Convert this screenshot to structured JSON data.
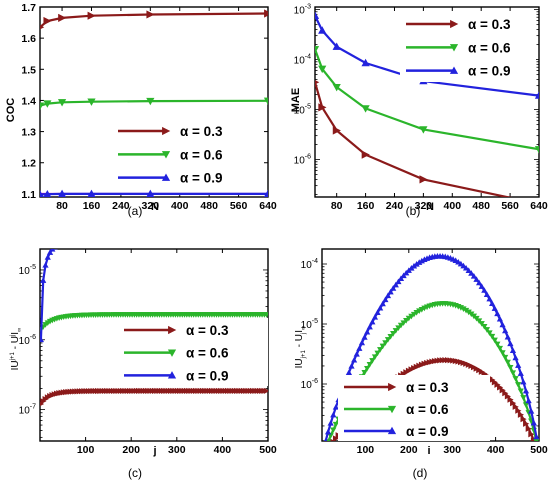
{
  "chart_data": [
    {
      "panel": "(a)",
      "type": "line",
      "xlabel": "N",
      "ylabel": "COC",
      "xlim": [
        20,
        640
      ],
      "ylim": [
        1.09,
        1.7
      ],
      "xticks": [
        "80",
        "160",
        "240",
        "320",
        "400",
        "480",
        "560",
        "640"
      ],
      "yticks": [
        "1.1",
        "1.2",
        "1.3",
        "1.4",
        "1.5",
        "1.6",
        "1.7"
      ],
      "legend_position": "bottom-right",
      "x": [
        20,
        40,
        80,
        160,
        320,
        640
      ],
      "series": [
        {
          "name": "α = 0.3",
          "color": "#8b1a1a",
          "marker": "right-triangle",
          "values": [
            1.635,
            1.655,
            1.665,
            1.672,
            1.676,
            1.679
          ]
        },
        {
          "name": "α = 0.6",
          "color": "#2bb52b",
          "marker": "down-triangle",
          "values": [
            1.383,
            1.39,
            1.394,
            1.396,
            1.398,
            1.399
          ]
        },
        {
          "name": "α = 0.9",
          "color": "#2222dd",
          "marker": "up-triangle",
          "values": [
            1.098,
            1.099,
            1.1,
            1.1,
            1.1,
            1.1
          ]
        }
      ],
      "extra_line": {
        "color": "#b000b0",
        "value": 1.1
      }
    },
    {
      "panel": "(b)",
      "type": "line",
      "xlabel": "N",
      "ylabel": "MAE",
      "yscale": "log",
      "xlim": [
        20,
        640
      ],
      "ylim_exp": [
        -6.75,
        -2.95
      ],
      "xticks": [
        "80",
        "160",
        "240",
        "320",
        "400",
        "480",
        "560",
        "640"
      ],
      "yticks": [
        {
          "base": "10",
          "exp": "-3"
        },
        {
          "base": "10",
          "exp": "-4"
        },
        {
          "base": "10",
          "exp": "-5"
        },
        {
          "base": "10",
          "exp": "-6"
        }
      ],
      "legend_position": "top-right",
      "x": [
        20,
        40,
        80,
        160,
        320,
        640
      ],
      "series": [
        {
          "name": "α = 0.3",
          "color": "#8b1a1a",
          "marker": "right-triangle",
          "values": [
            3.5e-05,
            1.1e-05,
            3.8e-06,
            1.25e-06,
            4e-07,
            1.3e-07
          ]
        },
        {
          "name": "α = 0.6",
          "color": "#2bb52b",
          "marker": "down-triangle",
          "values": [
            0.00016,
            6.5e-05,
            2.8e-05,
            1.05e-05,
            4e-06,
            1.6e-06
          ]
        },
        {
          "name": "α = 0.9",
          "color": "#2222dd",
          "marker": "up-triangle",
          "values": [
            0.00075,
            0.00038,
            0.00018,
            8.5e-05,
            3.7e-05,
            1.9e-05
          ]
        }
      ]
    },
    {
      "panel": "(c)",
      "type": "line",
      "xlabel": "j",
      "ylabel": "|U^(j+1) - U^j|∞",
      "ylabel_parts": {
        "main": "IU",
        "sup": "j+1",
        "mid": " - U",
        "sup2": "j",
        "end": "I",
        "sub": "∞"
      },
      "yscale": "log",
      "xlim": [
        0,
        500
      ],
      "ylim_exp": [
        -7.45,
        -4.7
      ],
      "xticks": [
        "100",
        "200",
        "300",
        "400",
        "500"
      ],
      "yticks": [
        {
          "base": "10",
          "exp": "-5"
        },
        {
          "base": "10",
          "exp": "-6"
        },
        {
          "base": "10",
          "exp": "-7"
        }
      ],
      "legend_position": "right",
      "series": [
        {
          "name": "α = 0.3",
          "color": "#8b1a1a",
          "marker": "right-triangle",
          "start": 1.2e-07,
          "end": 1.85e-07,
          "tau": 25
        },
        {
          "name": "α = 0.6",
          "color": "#2bb52b",
          "marker": "down-triangle",
          "start": 1.4e-06,
          "end": 2.3e-06,
          "tau": 30
        },
        {
          "name": "α = 0.9",
          "color": "#2222dd",
          "marker": "up-triangle",
          "start": 1e-06,
          "end": 2.6e-05,
          "tau": 18
        }
      ]
    },
    {
      "panel": "(d)",
      "type": "line",
      "xlabel": "i",
      "ylabel": "|U_(j+1) - U_j|∞",
      "ylabel_parts": {
        "main": "IU",
        "sub": "j+1",
        "mid": " - U",
        "sub2": "j",
        "end": "I",
        "sub3": "∞"
      },
      "yscale": "log",
      "xlim": [
        0,
        500
      ],
      "ylim_exp": [
        -6.95,
        -3.75
      ],
      "xticks": [
        "100",
        "200",
        "300",
        "400",
        "500"
      ],
      "yticks": [
        {
          "base": "10",
          "exp": "-4"
        },
        {
          "base": "10",
          "exp": "-5"
        },
        {
          "base": "10",
          "exp": "-6"
        }
      ],
      "legend_position": "bottom-center",
      "series": [
        {
          "name": "α = 0.3",
          "color": "#8b1a1a",
          "marker": "right-triangle",
          "peak": 2.5e-06,
          "peak_i": 285
        },
        {
          "name": "α = 0.6",
          "color": "#2bb52b",
          "marker": "down-triangle",
          "peak": 2.2e-05,
          "peak_i": 280
        },
        {
          "name": "α = 0.9",
          "color": "#2222dd",
          "marker": "up-triangle",
          "peak": 0.000135,
          "peak_i": 270
        }
      ]
    }
  ]
}
